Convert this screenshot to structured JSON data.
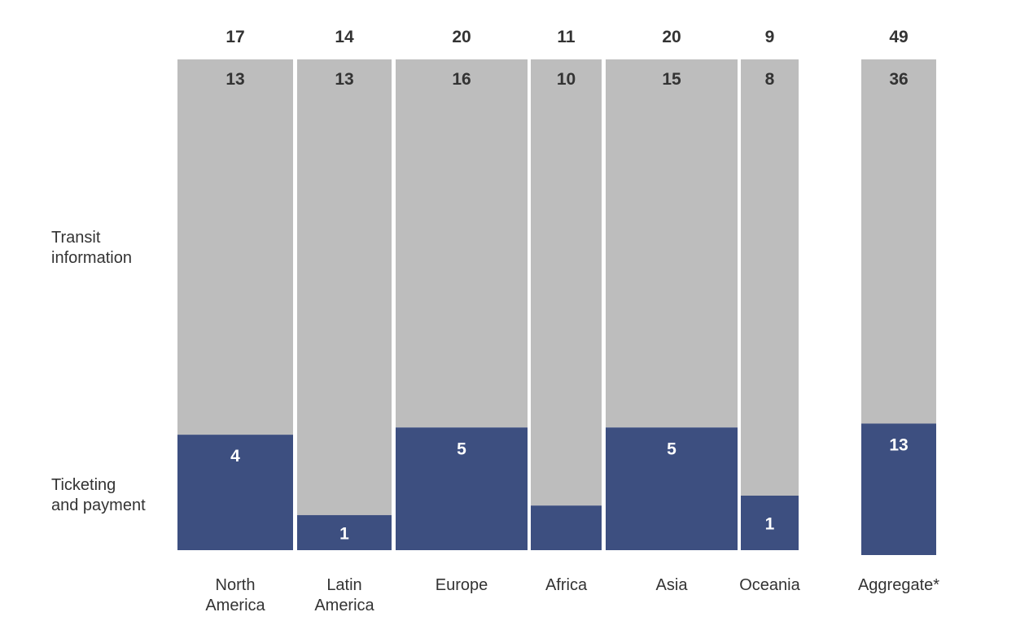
{
  "chart_data": {
    "type": "bar",
    "subtype": "stacked-mekko",
    "categories": [
      [
        "North",
        "America"
      ],
      [
        "Latin",
        "America"
      ],
      [
        "Europe"
      ],
      [
        "Africa"
      ],
      [
        "Asia"
      ],
      [
        "Oceania"
      ],
      [
        "Aggregate*"
      ]
    ],
    "totals": [
      17,
      14,
      20,
      11,
      20,
      9,
      49
    ],
    "series": [
      {
        "name": [
          "Transit",
          "information"
        ],
        "values": [
          13,
          13,
          16,
          10,
          15,
          8,
          36
        ],
        "labels": [
          "13",
          "13",
          "16",
          "10",
          "15",
          "8",
          "36"
        ],
        "color": "#bdbdbd"
      },
      {
        "name": [
          "Ticketing",
          "and payment"
        ],
        "values": [
          4,
          1,
          5,
          1,
          5,
          1,
          13
        ],
        "labels": [
          "4",
          "1",
          "5",
          "",
          "5",
          "1",
          "13"
        ],
        "color": "#3d4f80"
      }
    ],
    "legend_position": "left",
    "grid": false
  }
}
